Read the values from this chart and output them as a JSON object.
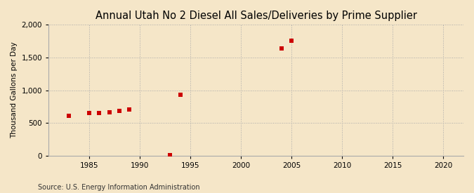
{
  "title": "Annual Utah No 2 Diesel All Sales/Deliveries by Prime Supplier",
  "ylabel": "Thousand Gallons per Day",
  "source": "Source: U.S. Energy Information Administration",
  "background_color": "#f5e6c8",
  "plot_background_color": "#f5e6c8",
  "data_points": [
    [
      1983,
      610
    ],
    [
      1985,
      648
    ],
    [
      1986,
      650
    ],
    [
      1987,
      665
    ],
    [
      1988,
      682
    ],
    [
      1989,
      700
    ],
    [
      1993,
      12
    ],
    [
      1994,
      930
    ],
    [
      2004,
      1640
    ],
    [
      2005,
      1755
    ]
  ],
  "marker_color": "#cc0000",
  "marker_size": 4,
  "xlim": [
    1981,
    2022
  ],
  "ylim": [
    0,
    2000
  ],
  "xticks": [
    1985,
    1990,
    1995,
    2000,
    2005,
    2010,
    2015,
    2020
  ],
  "yticks": [
    0,
    500,
    1000,
    1500,
    2000
  ],
  "grid_color": "#aaaaaa",
  "grid_style": "dotted",
  "title_fontsize": 10.5,
  "label_fontsize": 7.5,
  "tick_fontsize": 7.5,
  "source_fontsize": 7
}
